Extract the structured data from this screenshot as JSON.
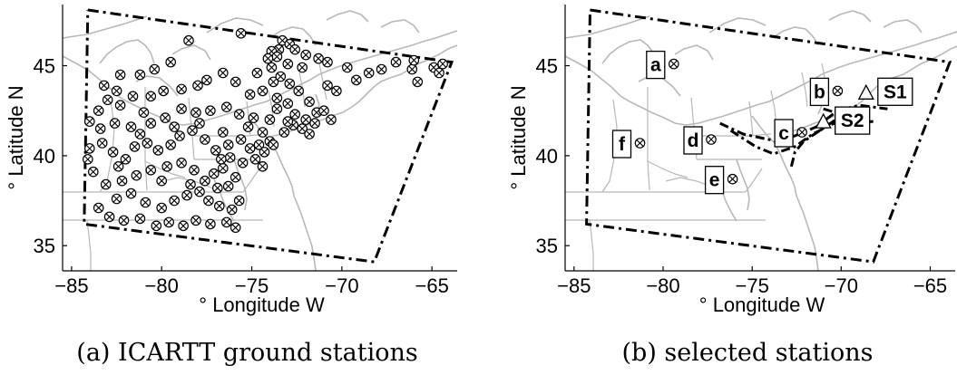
{
  "colors": {
    "map_lines": "#b8b8b8",
    "frame": "#000000",
    "background": "#ffffff"
  },
  "chart_data": [
    {
      "type": "scatter",
      "caption": "(a) ICARTT ground stations",
      "xlabel": "° Longitude W",
      "ylabel": "° Latitude N",
      "xlim": [
        -85.5,
        -63.6
      ],
      "ylim": [
        33.6,
        48.4
      ],
      "xticks": [
        -85,
        -80,
        -75,
        -70,
        -65
      ],
      "yticks": [
        35,
        40,
        45
      ],
      "domain_box": [
        [
          -84.1,
          48.1
        ],
        [
          -63.9,
          45.2
        ],
        [
          -68.2,
          34.1
        ],
        [
          -84.3,
          36.2
        ]
      ],
      "marker": "circle-x",
      "stations": [
        [
          -78.5,
          46.4
        ],
        [
          -75.6,
          46.8
        ],
        [
          -73.3,
          46.4
        ],
        [
          -72.9,
          46.2
        ],
        [
          -73.5,
          45.9
        ],
        [
          -72.6,
          45.9
        ],
        [
          -73.9,
          45.8
        ],
        [
          -72.0,
          45.6
        ],
        [
          -73.6,
          45.5
        ],
        [
          -74.1,
          45.4
        ],
        [
          -71.3,
          45.4
        ],
        [
          -70.8,
          45.2
        ],
        [
          -73.0,
          45.1
        ],
        [
          -72.2,
          44.9
        ],
        [
          -69.7,
          44.9
        ],
        [
          -68.5,
          44.6
        ],
        [
          -67.8,
          44.8
        ],
        [
          -66.1,
          44.8
        ],
        [
          -66.0,
          45.3
        ],
        [
          -64.9,
          44.9
        ],
        [
          -64.6,
          44.6
        ],
        [
          -65.8,
          44.1
        ],
        [
          -64.4,
          45.1
        ],
        [
          -67.0,
          45.2
        ],
        [
          -79.5,
          45.2
        ],
        [
          -80.4,
          44.8
        ],
        [
          -81.2,
          44.5
        ],
        [
          -82.3,
          44.5
        ],
        [
          -83.2,
          43.9
        ],
        [
          -82.5,
          43.6
        ],
        [
          -81.6,
          43.3
        ],
        [
          -80.6,
          43.3
        ],
        [
          -79.9,
          43.6
        ],
        [
          -78.9,
          43.7
        ],
        [
          -78.0,
          43.9
        ],
        [
          -77.5,
          44.2
        ],
        [
          -76.6,
          44.6
        ],
        [
          -75.9,
          44.1
        ],
        [
          -75.1,
          43.4
        ],
        [
          -74.4,
          43.6
        ],
        [
          -73.6,
          43.2
        ],
        [
          -73.0,
          42.9
        ],
        [
          -73.8,
          44.1
        ],
        [
          -74.7,
          44.6
        ],
        [
          -83.0,
          43.1
        ],
        [
          -82.3,
          42.8
        ],
        [
          -83.5,
          42.5
        ],
        [
          -84.0,
          41.9
        ],
        [
          -83.4,
          41.5
        ],
        [
          -82.6,
          41.8
        ],
        [
          -81.7,
          41.6
        ],
        [
          -81.2,
          41.2
        ],
        [
          -80.6,
          41.8
        ],
        [
          -79.8,
          42.1
        ],
        [
          -78.9,
          42.6
        ],
        [
          -78.1,
          42.4
        ],
        [
          -77.3,
          42.5
        ],
        [
          -76.4,
          42.7
        ],
        [
          -75.7,
          42.3
        ],
        [
          -74.9,
          42.1
        ],
        [
          -74.0,
          42.0
        ],
        [
          -73.6,
          42.6
        ],
        [
          -72.6,
          42.3
        ],
        [
          -72.0,
          42.0
        ],
        [
          -71.4,
          42.4
        ],
        [
          -71.0,
          42.5
        ],
        [
          -70.6,
          42.0
        ],
        [
          -71.5,
          41.8
        ],
        [
          -72.7,
          41.7
        ],
        [
          -73.2,
          41.3
        ],
        [
          -72.2,
          41.5
        ],
        [
          -71.8,
          41.2
        ],
        [
          -84.0,
          40.4
        ],
        [
          -83.3,
          40.7
        ],
        [
          -82.7,
          40.2
        ],
        [
          -82.0,
          39.8
        ],
        [
          -81.5,
          40.5
        ],
        [
          -80.8,
          40.7
        ],
        [
          -80.2,
          40.3
        ],
        [
          -79.5,
          40.6
        ],
        [
          -79.0,
          41.1
        ],
        [
          -78.3,
          41.4
        ],
        [
          -77.6,
          40.9
        ],
        [
          -77.0,
          40.3
        ],
        [
          -76.3,
          40.6
        ],
        [
          -75.6,
          40.9
        ],
        [
          -75.1,
          40.4
        ],
        [
          -74.6,
          40.6
        ],
        [
          -74.0,
          40.8
        ],
        [
          -73.8,
          40.6
        ],
        [
          -74.3,
          40.2
        ],
        [
          -74.8,
          39.8
        ],
        [
          -75.5,
          39.6
        ],
        [
          -76.2,
          39.9
        ],
        [
          -76.6,
          39.3
        ],
        [
          -77.1,
          39.0
        ],
        [
          -77.6,
          38.6
        ],
        [
          -78.2,
          39.2
        ],
        [
          -78.9,
          39.6
        ],
        [
          -79.7,
          39.4
        ],
        [
          -80.6,
          39.2
        ],
        [
          -81.4,
          38.9
        ],
        [
          -82.2,
          38.6
        ],
        [
          -83.1,
          38.4
        ],
        [
          -83.8,
          39.1
        ],
        [
          -84.1,
          39.8
        ],
        [
          -83.5,
          37.1
        ],
        [
          -82.5,
          37.6
        ],
        [
          -81.7,
          37.9
        ],
        [
          -80.9,
          37.4
        ],
        [
          -80.0,
          37.1
        ],
        [
          -79.3,
          37.5
        ],
        [
          -78.6,
          37.8
        ],
        [
          -77.9,
          38.0
        ],
        [
          -77.4,
          37.5
        ],
        [
          -76.8,
          37.2
        ],
        [
          -76.1,
          37.0
        ],
        [
          -75.7,
          37.5
        ],
        [
          -76.3,
          38.3
        ],
        [
          -75.9,
          38.8
        ],
        [
          -76.9,
          38.2
        ],
        [
          -82.9,
          36.6
        ],
        [
          -82.1,
          36.4
        ],
        [
          -81.2,
          36.5
        ],
        [
          -80.3,
          36.1
        ],
        [
          -79.6,
          36.3
        ],
        [
          -78.8,
          36.1
        ],
        [
          -78.1,
          36.4
        ],
        [
          -77.3,
          36.2
        ],
        [
          -76.4,
          36.3
        ],
        [
          -75.9,
          36.0
        ],
        [
          -73.9,
          44.9
        ],
        [
          -73.4,
          44.4
        ],
        [
          -72.9,
          44.0
        ],
        [
          -72.4,
          43.6
        ],
        [
          -71.8,
          43.0
        ],
        [
          -70.3,
          43.6
        ],
        [
          -69.2,
          44.2
        ],
        [
          -70.8,
          43.9
        ],
        [
          -81.0,
          42.4
        ],
        [
          -79.3,
          41.6
        ],
        [
          -77.9,
          41.8
        ],
        [
          -76.6,
          41.3
        ],
        [
          -75.2,
          41.6
        ],
        [
          -74.4,
          41.3
        ],
        [
          -73.0,
          41.9
        ],
        [
          -82.4,
          39.4
        ],
        [
          -80.0,
          38.6
        ],
        [
          -78.4,
          38.4
        ],
        [
          -76.7,
          39.8
        ],
        [
          -74.4,
          39.4
        ]
      ]
    },
    {
      "type": "scatter",
      "caption": "(b) selected stations",
      "xlabel": "° Longitude W",
      "ylabel": "° Latitude N",
      "xlim": [
        -85.5,
        -63.6
      ],
      "ylim": [
        33.6,
        48.4
      ],
      "xticks": [
        -85,
        -80,
        -75,
        -70,
        -65
      ],
      "yticks": [
        35,
        40,
        45
      ],
      "domain_box": [
        [
          -84.1,
          48.1
        ],
        [
          -63.9,
          45.2
        ],
        [
          -68.2,
          34.1
        ],
        [
          -84.3,
          36.2
        ]
      ],
      "stations": [
        {
          "label": "a",
          "lon": -79.4,
          "lat": 45.1
        },
        {
          "label": "b",
          "lon": -70.2,
          "lat": 43.6
        },
        {
          "label": "c",
          "lon": -72.2,
          "lat": 41.3
        },
        {
          "label": "d",
          "lon": -77.3,
          "lat": 40.9
        },
        {
          "label": "e",
          "lon": -76.1,
          "lat": 38.7
        },
        {
          "label": "f",
          "lon": -81.3,
          "lat": 40.7
        }
      ],
      "sites": [
        {
          "label": "S1",
          "lon": -68.6,
          "lat": 43.5
        },
        {
          "label": "S2",
          "lon": -71.0,
          "lat": 41.9
        }
      ],
      "tracks": [
        [
          [
            -76.8,
            41.8
          ],
          [
            -75.5,
            41.2
          ],
          [
            -73.6,
            40.8
          ],
          [
            -72.6,
            41.1
          ],
          [
            -71.4,
            41.6
          ],
          [
            -70.2,
            42.5
          ],
          [
            -69.0,
            42.8
          ],
          [
            -67.4,
            42.6
          ]
        ],
        [
          [
            -76.2,
            41.4
          ],
          [
            -74.8,
            40.5
          ],
          [
            -73.8,
            40.1
          ],
          [
            -72.6,
            40.5
          ],
          [
            -71.6,
            41.2
          ],
          [
            -70.4,
            41.8
          ],
          [
            -69.6,
            41.8
          ],
          [
            -68.2,
            41.9
          ]
        ],
        [
          [
            -72.8,
            39.4
          ],
          [
            -72.6,
            40.2
          ],
          [
            -72.1,
            40.8
          ],
          [
            -71.2,
            41.4
          ],
          [
            -70.3,
            42.0
          ],
          [
            -68.9,
            42.2
          ]
        ],
        [
          [
            -71.0,
            42.6
          ],
          [
            -70.0,
            42.3
          ],
          [
            -68.8,
            42.1
          ]
        ]
      ]
    }
  ]
}
